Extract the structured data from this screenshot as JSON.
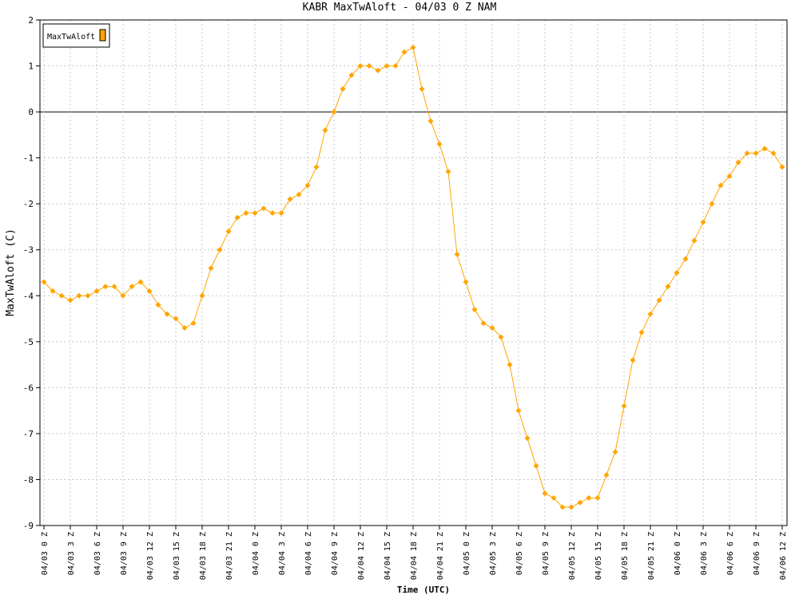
{
  "chart_data": {
    "type": "line",
    "title": "KABR MaxTwAloft - 04/03 0 Z NAM",
    "x_label": "Time (UTC)",
    "y_label": "MaxTwAloft (C)",
    "categories": [
      "04/03 0 Z",
      null,
      null,
      "04/03 3 Z",
      null,
      null,
      "04/03 6 Z",
      null,
      null,
      "04/03 9 Z",
      null,
      null,
      "04/03 12 Z",
      null,
      null,
      "04/03 15 Z",
      null,
      null,
      "04/03 18 Z",
      null,
      null,
      "04/03 21 Z",
      null,
      null,
      "04/04 0 Z",
      null,
      null,
      "04/04 3 Z",
      null,
      null,
      "04/04 6 Z",
      null,
      null,
      "04/04 9 Z",
      null,
      null,
      "04/04 12 Z",
      null,
      null,
      "04/04 15 Z",
      null,
      null,
      "04/04 18 Z",
      null,
      null,
      "04/04 21 Z",
      null,
      null,
      "04/05 0 Z",
      null,
      null,
      "04/05 3 Z",
      null,
      null,
      "04/05 6 Z",
      null,
      null,
      "04/05 9 Z",
      null,
      null,
      "04/05 12 Z",
      null,
      null,
      "04/05 15 Z",
      null,
      null,
      "04/05 18 Z",
      null,
      null,
      "04/05 21 Z",
      null,
      null,
      "04/06 0 Z",
      null,
      null,
      "04/06 3 Z",
      null,
      null,
      "04/06 6 Z",
      null,
      null,
      "04/06 9 Z",
      null,
      null,
      "04/06 12 Z"
    ],
    "series": [
      {
        "name": "MaxTwAloft",
        "color": "#ffa500",
        "values": [
          -3.7,
          -3.9,
          -4.0,
          -4.1,
          -4.0,
          -4.0,
          -3.9,
          -3.8,
          -3.8,
          -4.0,
          -3.8,
          -3.7,
          -3.9,
          -4.2,
          -4.4,
          -4.5,
          -4.7,
          -4.6,
          -4.0,
          -3.4,
          -3.0,
          -2.6,
          -2.3,
          -2.2,
          -2.2,
          -2.1,
          -2.2,
          -2.2,
          -1.9,
          -1.8,
          -1.6,
          -1.2,
          -0.4,
          0.0,
          0.5,
          0.8,
          1.0,
          1.0,
          0.9,
          1.0,
          1.0,
          1.3,
          1.4,
          0.5,
          -0.2,
          -0.7,
          -1.3,
          -3.1,
          -3.7,
          -4.3,
          -4.6,
          -4.7,
          -4.9,
          -5.5,
          -6.5,
          -7.1,
          -7.7,
          -8.3,
          -8.4,
          -8.6,
          -8.6,
          -8.5,
          -8.4,
          -8.4,
          -7.9,
          -7.4,
          -6.4,
          -5.4,
          -4.8,
          -4.4,
          -4.1,
          -3.8,
          -3.5,
          -3.2,
          -2.8,
          -2.4,
          -2.0,
          -1.6,
          -1.4,
          -1.1,
          -0.9,
          -0.9,
          -0.8,
          -0.9,
          -1.2
        ]
      }
    ],
    "ylim": [
      -9,
      2
    ],
    "yticks": [
      -9,
      -8,
      -7,
      -6,
      -5,
      -4,
      -3,
      -2,
      -1,
      0,
      1,
      2
    ],
    "grid": true
  }
}
